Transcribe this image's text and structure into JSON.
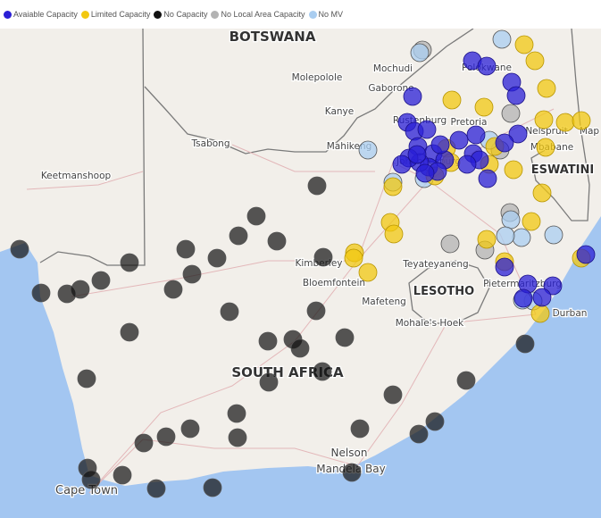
{
  "legend": [
    {
      "label": "Avaiable Capacity",
      "color": "#2a1fd6"
    },
    {
      "label": "Limited Capacity",
      "color": "#f2c811"
    },
    {
      "label": "No Capacity",
      "color": "#111111"
    },
    {
      "label": "No Local Area Capacity",
      "color": "#b3b3b3"
    },
    {
      "label": "No MV",
      "color": "#a9cdf0"
    }
  ],
  "map": {
    "countries": [
      "BOTSWANA",
      "SOUTH AFRICA",
      "LESOTHO",
      "ESWATINI"
    ],
    "places": [
      "Mochudi",
      "Molepolole",
      "Gaborone",
      "Kanye",
      "Polokwane",
      "Rustenburg",
      "Pretoria",
      "Nelspruit",
      "Map",
      "Tsabong",
      "Mahikeng",
      "Mbabane",
      "Johannesburg",
      "Keetmanshoop",
      "Kimberley",
      "Teyateyaneng",
      "Bloemfontein",
      "Pietermaritzburg",
      "Mafeteng",
      "Durban",
      "Mohale's Hoek",
      "Nelson",
      "Mandela Bay",
      "Cape Town"
    ]
  }
}
